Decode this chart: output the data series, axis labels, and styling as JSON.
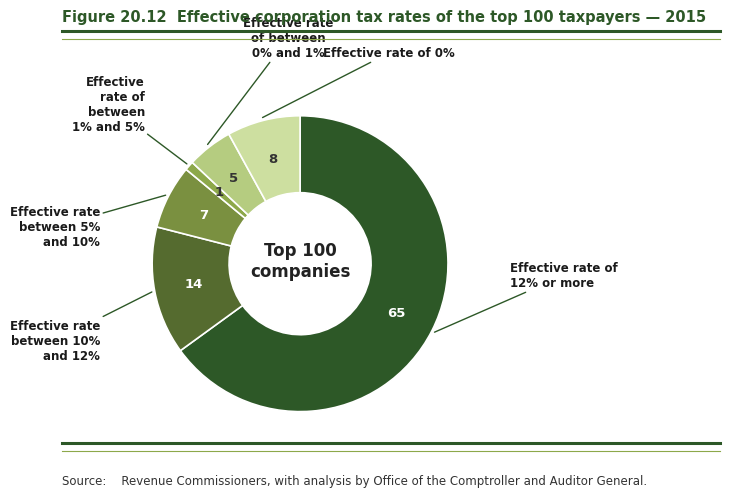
{
  "title": "Figure 20.12  Effective corporation tax rates of the top 100 taxpayers — 2015",
  "source": "Source:    Revenue Commissioners, with analysis by Office of the Comptroller and Auditor General.",
  "center_label": "Top 100\ncompanies",
  "slices": [
    {
      "label": "Effective rate of\n12% or more",
      "value": 65,
      "color": "#2d5827",
      "num": "65",
      "num_color": "white"
    },
    {
      "label": "Effective rate\nbetween 10%\nand 12%",
      "value": 14,
      "color": "#556b2f",
      "num": "14",
      "num_color": "white"
    },
    {
      "label": "Effective rate\nbetween 5%\nand 10%",
      "value": 7,
      "color": "#7a9040",
      "num": "7",
      "num_color": "white"
    },
    {
      "label": "Effective\nrate of\nbetween\n1% and 5%",
      "value": 1,
      "color": "#8da84a",
      "num": "1",
      "num_color": "#333333"
    },
    {
      "label": "Effective rate\nof between\n0% and 1%",
      "value": 5,
      "color": "#b5cc80",
      "num": "5",
      "num_color": "#333333"
    },
    {
      "label": "Effective rate of 0%",
      "value": 8,
      "color": "#cddfa0",
      "num": "8",
      "num_color": "#333333"
    }
  ],
  "bg_color": "#ffffff",
  "title_color": "#2d5827",
  "line_color_dark": "#2d5827",
  "line_color_light": "#8da84a"
}
